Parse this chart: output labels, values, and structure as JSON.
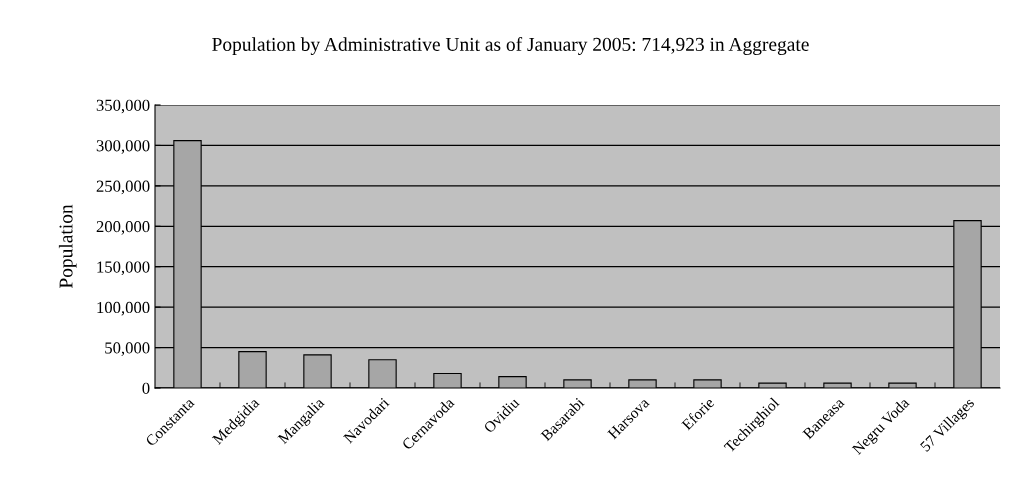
{
  "chart_data": {
    "type": "bar",
    "title": "Population by Administrative Unit as of January 2005: 714,923 in Aggregate",
    "ylabel": "Population",
    "categories": [
      "Constanta",
      "Medgidia",
      "Mangalia",
      "Navodari",
      "Cernavoda",
      "Ovidiu",
      "Basarabi",
      "Harsova",
      "Eforie",
      "Techirghiol",
      "Baneasa",
      "Negru Voda",
      "57 Villages"
    ],
    "values": [
      306000,
      45000,
      41000,
      35000,
      18000,
      14000,
      10000,
      10000,
      10000,
      6000,
      6000,
      6000,
      207000
    ],
    "color": "#a6a6a6",
    "ylim": [
      0,
      350000
    ],
    "yticks": [
      {
        "value": 0,
        "label": "0"
      },
      {
        "value": 50000,
        "label": "50,000"
      },
      {
        "value": 100000,
        "label": "100,000"
      },
      {
        "value": 150000,
        "label": "150,000"
      },
      {
        "value": 200000,
        "label": "200,000"
      },
      {
        "value": 250000,
        "label": "250,000"
      },
      {
        "value": 300000,
        "label": "300,000"
      },
      {
        "value": 350000,
        "label": "350,000"
      }
    ],
    "grid": "y"
  }
}
